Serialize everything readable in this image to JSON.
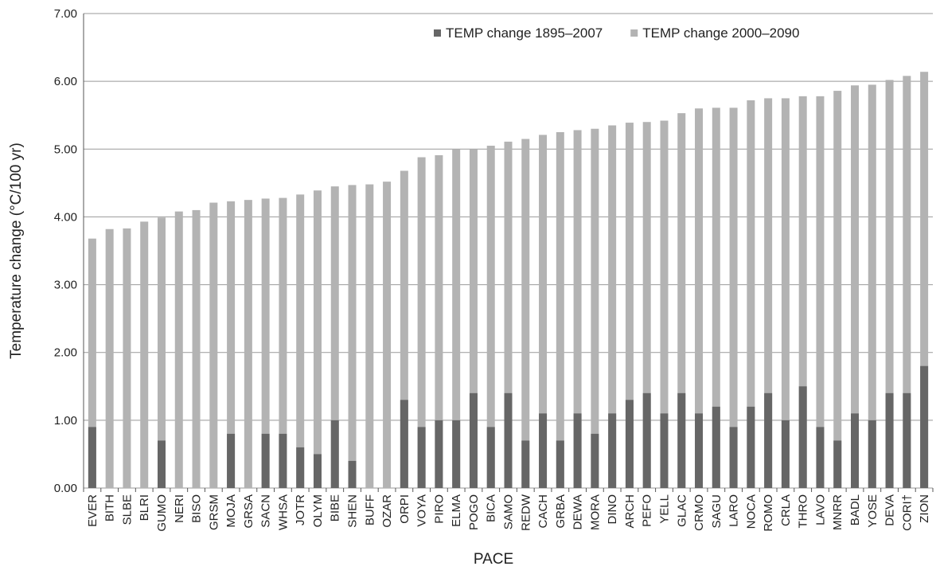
{
  "chart_data": {
    "type": "bar",
    "barmode": "overlay",
    "x_label": "PACE",
    "y_label": "Temperature change (°C/100 yr)",
    "categories": [
      "EVER",
      "BITH",
      "SLBE",
      "BLRI",
      "GUMO",
      "NERI",
      "BISO",
      "GRSM",
      "MOJA",
      "GRSA",
      "SACN",
      "WHSA",
      "JOTR",
      "OLYM",
      "BIBE",
      "SHEN",
      "BUFF",
      "OZAR",
      "ORPI",
      "VOYA",
      "PIRO",
      "ELMA",
      "POGO",
      "BICA",
      "SAMO",
      "REDW",
      "CACH",
      "GRBA",
      "DEWA",
      "MORA",
      "DINO",
      "ARCH",
      "PEFO",
      "YELL",
      "GLAC",
      "CRMO",
      "SAGU",
      "LARO",
      "NOCA",
      "ROMO",
      "CRLA",
      "THRO",
      "LAVO",
      "MNRR",
      "BADL",
      "YOSE",
      "DEVA",
      "CORI†",
      "ZION"
    ],
    "series": [
      {
        "name": "TEMP change 2000–2090",
        "color": "#b3b3b3",
        "values": [
          3.68,
          3.82,
          3.83,
          3.93,
          3.99,
          4.08,
          4.1,
          4.21,
          4.23,
          4.25,
          4.27,
          4.28,
          4.33,
          4.39,
          4.45,
          4.47,
          4.48,
          4.52,
          4.68,
          4.88,
          4.91,
          5.0,
          5.0,
          5.05,
          5.11,
          5.15,
          5.21,
          5.25,
          5.28,
          5.3,
          5.35,
          5.39,
          5.4,
          5.42,
          5.53,
          5.6,
          5.61,
          5.61,
          5.72,
          5.75,
          5.75,
          5.78,
          5.78,
          5.86,
          5.94,
          5.95,
          6.02,
          6.08,
          6.14
        ]
      },
      {
        "name": "TEMP change 1895–2007",
        "color": "#666666",
        "values": [
          0.9,
          null,
          null,
          null,
          0.7,
          null,
          null,
          null,
          0.8,
          null,
          0.8,
          0.8,
          0.6,
          0.5,
          1.0,
          0.4,
          null,
          null,
          1.3,
          0.9,
          1.0,
          1.0,
          1.4,
          0.9,
          1.4,
          0.7,
          1.1,
          0.7,
          1.1,
          0.8,
          1.1,
          1.3,
          1.4,
          1.1,
          1.4,
          1.1,
          1.2,
          0.9,
          1.2,
          1.4,
          1.0,
          1.5,
          0.9,
          0.7,
          1.1,
          1.0,
          1.4,
          1.4,
          1.8
        ]
      }
    ],
    "legend_order": [
      1,
      0
    ],
    "ylim": [
      0,
      7
    ],
    "yticks": [
      {
        "value": 0,
        "label": "0.00"
      },
      {
        "value": 1,
        "label": "1.00"
      },
      {
        "value": 2,
        "label": "2.00"
      },
      {
        "value": 3,
        "label": "3.00"
      },
      {
        "value": 4,
        "label": "4.00"
      },
      {
        "value": 5,
        "label": "5.00"
      },
      {
        "value": 6,
        "label": "6.00"
      },
      {
        "value": 7,
        "label": "7.00"
      }
    ],
    "grid": true,
    "legend": "top-right"
  }
}
